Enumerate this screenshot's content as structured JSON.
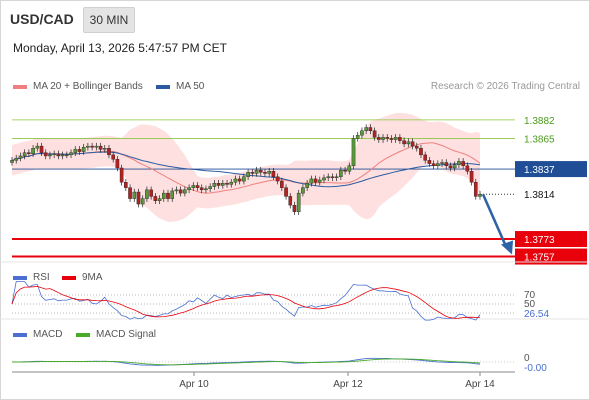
{
  "header": {
    "symbol": "USD/CAD",
    "timeframe": "30 MIN",
    "datetime": "Monday, April 13, 2026 5:47:57 PM CET"
  },
  "legend": {
    "ma20_label": "MA 20 + Bollinger Bands",
    "ma50_label": "MA 50",
    "credit": "Research © 2026 Trading Central"
  },
  "colors": {
    "resistance": "#8dc63f",
    "support": "#e8000b",
    "pivot": "#1f4e96",
    "current": "#333333",
    "bollinger_fill": "#fde0df",
    "ma20": "#f08080",
    "ma50": "#2c5aa0",
    "candle_up": "#5a9a3a",
    "candle_down": "#b22222",
    "arrow": "#2f63a8",
    "rsi": "#4a6fd1",
    "rsi_ma": "#e8000b",
    "macd": "#4a6fd1",
    "macd_signal": "#4aaa2a"
  },
  "levels": [
    {
      "value": 1.3882,
      "label": "1.3882",
      "kind": "resistance"
    },
    {
      "value": 1.3865,
      "label": "1.3865",
      "kind": "resistance"
    },
    {
      "value": 1.3837,
      "label": "1.3837",
      "kind": "pivot"
    },
    {
      "value": 1.3814,
      "label": "1.3814",
      "kind": "current"
    },
    {
      "value": 1.3773,
      "label": "1.3773",
      "kind": "support"
    },
    {
      "value": 1.3757,
      "label": "1.3757",
      "kind": "support"
    }
  ],
  "rsi_panel": {
    "title": "RSI",
    "ma_title": "9MA",
    "level_70": "70",
    "level_50": "50",
    "current": "26.54"
  },
  "macd_panel": {
    "title": "MACD",
    "signal_title": "MACD Signal",
    "zero": "0",
    "current": "-0.00"
  },
  "x_axis": {
    "labels": [
      "Apr 10",
      "Apr 12",
      "Apr 14"
    ]
  },
  "chart_data": {
    "type": "candlestick",
    "instrument": "USD/CAD",
    "interval": "30 MIN",
    "ylim": [
      1.3752,
      1.3902
    ],
    "close": [
      1.3845,
      1.3847,
      1.3849,
      1.3852,
      1.3851,
      1.3856,
      1.3858,
      1.3852,
      1.3849,
      1.385,
      1.3851,
      1.3849,
      1.385,
      1.385,
      1.3852,
      1.3855,
      1.3853,
      1.3857,
      1.3858,
      1.3857,
      1.3858,
      1.3855,
      1.3856,
      1.385,
      1.3846,
      1.3838,
      1.3825,
      1.382,
      1.381,
      1.3816,
      1.3805,
      1.381,
      1.3818,
      1.3812,
      1.3808,
      1.381,
      1.3815,
      1.381,
      1.3817,
      1.3818,
      1.3815,
      1.3818,
      1.382,
      1.3822,
      1.382,
      1.3818,
      1.3819,
      1.3821,
      1.3824,
      1.3822,
      1.3824,
      1.3823,
      1.3825,
      1.3828,
      1.3826,
      1.383,
      1.3834,
      1.3833,
      1.3836,
      1.3834,
      1.3833,
      1.3835,
      1.383,
      1.3826,
      1.382,
      1.3812,
      1.3804,
      1.3798,
      1.3815,
      1.382,
      1.3824,
      1.3828,
      1.3825,
      1.3827,
      1.3829,
      1.383,
      1.3829,
      1.383,
      1.3836,
      1.3835,
      1.384,
      1.3865,
      1.3868,
      1.3872,
      1.3875,
      1.3872,
      1.3866,
      1.3864,
      1.3866,
      1.3865,
      1.3864,
      1.3866,
      1.3863,
      1.386,
      1.3862,
      1.3858,
      1.3856,
      1.385,
      1.3845,
      1.3842,
      1.384,
      1.3842,
      1.3843,
      1.384,
      1.3838,
      1.3841,
      1.3844,
      1.384,
      1.3835,
      1.3825,
      1.3812,
      1.3814
    ],
    "rsi_current": 26.54,
    "macd_current": -0.0
  }
}
